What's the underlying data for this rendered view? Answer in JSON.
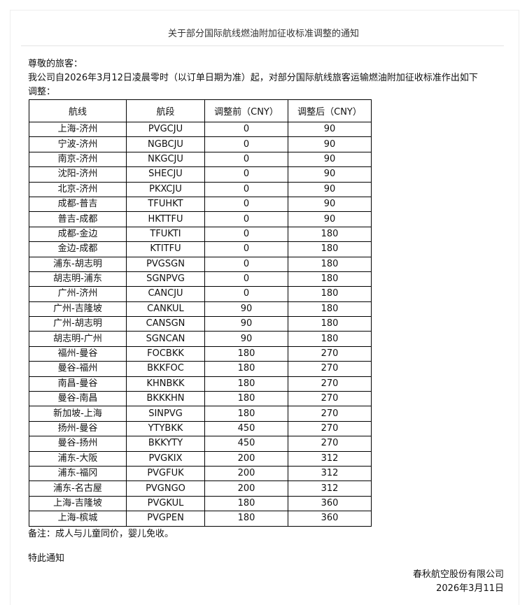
{
  "title": "关于部分国际航线燃油附加征收标准调整的通知",
  "greeting": "尊敬的旅客：",
  "intro_line1": "我公司自2026年3月12日凌晨零时（以订单日期为准）起，对部分国际航线旅客运输燃油附加征收标准作出如下",
  "intro_line2": "调整：",
  "table": {
    "headers": [
      "航线",
      "航段",
      "调整前（CNY）",
      "调整后（CNY）"
    ],
    "rows": [
      [
        "上海-济州",
        "PVGCJU",
        "0",
        "90"
      ],
      [
        "宁波-济州",
        "NGBCJU",
        "0",
        "90"
      ],
      [
        "南京-济州",
        "NKGCJU",
        "0",
        "90"
      ],
      [
        "沈阳-济州",
        "SHECJU",
        "0",
        "90"
      ],
      [
        "北京-济州",
        "PKXCJU",
        "0",
        "90"
      ],
      [
        "成都-普吉",
        "TFUHKT",
        "0",
        "90"
      ],
      [
        "普吉-成都",
        "HKTTFU",
        "0",
        "90"
      ],
      [
        "成都-金边",
        "TFUKTI",
        "0",
        "180"
      ],
      [
        "金边-成都",
        "KTITFU",
        "0",
        "180"
      ],
      [
        "浦东-胡志明",
        "PVGSGN",
        "0",
        "180"
      ],
      [
        "胡志明-浦东",
        "SGNPVG",
        "0",
        "180"
      ],
      [
        "广州-济州",
        "CANCJU",
        "0",
        "180"
      ],
      [
        "广州-吉隆坡",
        "CANKUL",
        "90",
        "180"
      ],
      [
        "广州-胡志明",
        "CANSGN",
        "90",
        "180"
      ],
      [
        "胡志明-广州",
        "SGNCAN",
        "90",
        "180"
      ],
      [
        "福州-曼谷",
        "FOCBKK",
        "180",
        "270"
      ],
      [
        "曼谷-福州",
        "BKKFOC",
        "180",
        "270"
      ],
      [
        "南昌-曼谷",
        "KHNBKK",
        "180",
        "270"
      ],
      [
        "曼谷-南昌",
        "BKKKHN",
        "180",
        "270"
      ],
      [
        "新加坡-上海",
        "SINPVG",
        "180",
        "270"
      ],
      [
        "扬州-曼谷",
        "YTYBKK",
        "450",
        "270"
      ],
      [
        "曼谷-扬州",
        "BKKYTY",
        "450",
        "270"
      ],
      [
        "浦东-大阪",
        "PVGKIX",
        "200",
        "312"
      ],
      [
        "浦东-福冈",
        "PVGFUK",
        "200",
        "312"
      ],
      [
        "浦东-名古屋",
        "PVGNGO",
        "200",
        "312"
      ],
      [
        "上海-吉隆坡",
        "PVGKUL",
        "180",
        "360"
      ],
      [
        "上海-槟城",
        "PVGPEN",
        "180",
        "360"
      ]
    ]
  },
  "note": "备注：成人与儿童同价，婴儿免收。",
  "closing": "特此通知",
  "company": "春秋航空股份有限公司",
  "date": "2026年3月11日"
}
